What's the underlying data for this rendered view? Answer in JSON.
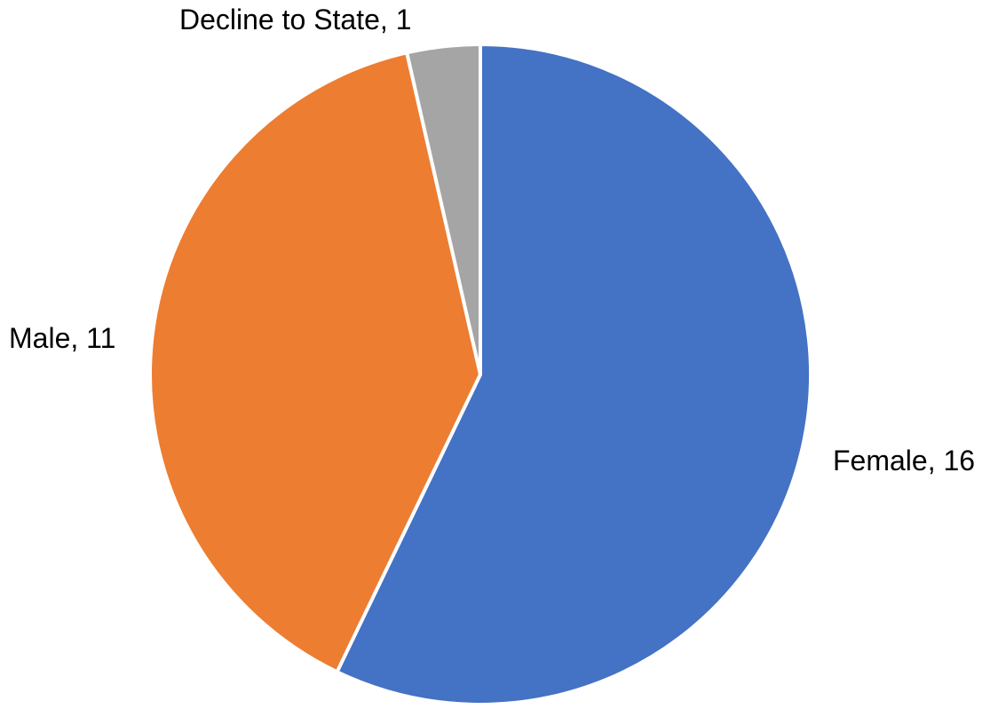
{
  "chart_data": {
    "type": "pie",
    "slices": [
      {
        "label": "Female",
        "value": 16,
        "display": "Female, 16",
        "color": "#4472C4"
      },
      {
        "label": "Male",
        "value": 11,
        "display": "Male, 11",
        "color": "#ED7D31"
      },
      {
        "label": "Decline to State",
        "value": 1,
        "display": "Decline to State, 1",
        "color": "#A5A5A5"
      }
    ],
    "start_position": "top",
    "direction": "clockwise",
    "legend": "none",
    "data_labels": "outside"
  }
}
